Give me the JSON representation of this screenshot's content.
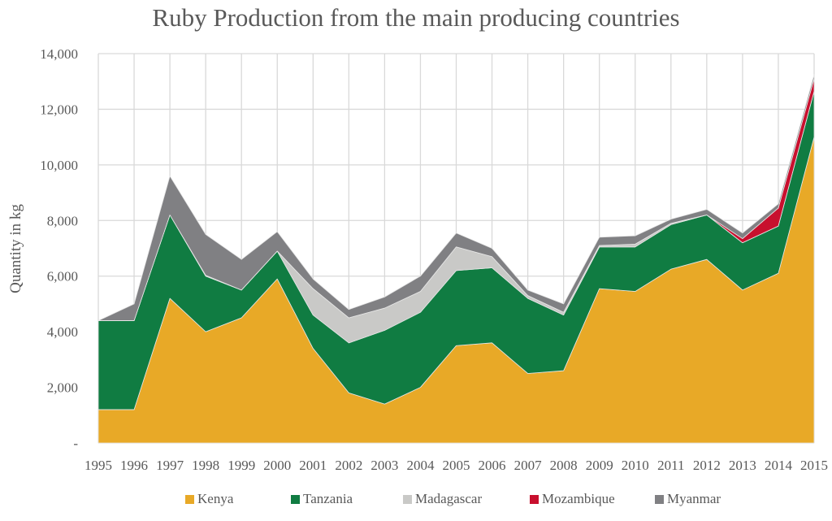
{
  "chart_data": {
    "type": "area",
    "stacked": true,
    "title": "Ruby Production from the main producing countries",
    "xlabel": "",
    "ylabel": "Quantity in kg",
    "categories": [
      "1995",
      "1996",
      "1997",
      "1998",
      "1999",
      "2000",
      "2001",
      "2002",
      "2003",
      "2004",
      "2005",
      "2006",
      "2007",
      "2008",
      "2009",
      "2010",
      "2011",
      "2012",
      "2013",
      "2014",
      "2015"
    ],
    "ylim": [
      0,
      14000
    ],
    "yticks": [
      0,
      2000,
      4000,
      6000,
      8000,
      10000,
      12000,
      14000
    ],
    "ytick_labels": [
      "-",
      "2,000",
      "4,000",
      "6,000",
      "8,000",
      "10,000",
      "12,000",
      "14,000"
    ],
    "grid": true,
    "legend_position": "bottom",
    "series": [
      {
        "name": "Kenya",
        "color": "#E8A927",
        "values": [
          1200,
          1200,
          5200,
          4000,
          4500,
          5900,
          3400,
          1800,
          1400,
          2000,
          3500,
          3600,
          2500,
          2600,
          5550,
          5450,
          6250,
          6600,
          5500,
          6100,
          11000
        ]
      },
      {
        "name": "Tanzania",
        "color": "#107C42",
        "values": [
          3200,
          3200,
          3000,
          2000,
          1000,
          1000,
          1200,
          1800,
          2650,
          2700,
          2700,
          2700,
          2700,
          2000,
          1500,
          1600,
          1600,
          1600,
          1700,
          1700,
          1650
        ]
      },
      {
        "name": "Madagascar",
        "color": "#C9C9C7",
        "values": [
          0,
          0,
          0,
          30,
          0,
          0,
          950,
          900,
          800,
          750,
          850,
          400,
          100,
          100,
          50,
          100,
          50,
          0,
          0,
          0,
          0
        ]
      },
      {
        "name": "Mozambique",
        "color": "#C8102E",
        "values": [
          0,
          0,
          0,
          0,
          0,
          0,
          0,
          0,
          0,
          0,
          0,
          0,
          0,
          0,
          0,
          0,
          0,
          0,
          150,
          650,
          450
        ]
      },
      {
        "name": "Myanmar",
        "color": "#808083",
        "values": [
          0,
          600,
          1400,
          1470,
          1100,
          700,
          350,
          300,
          400,
          550,
          500,
          300,
          200,
          300,
          300,
          300,
          150,
          200,
          200,
          150,
          150
        ]
      }
    ]
  }
}
